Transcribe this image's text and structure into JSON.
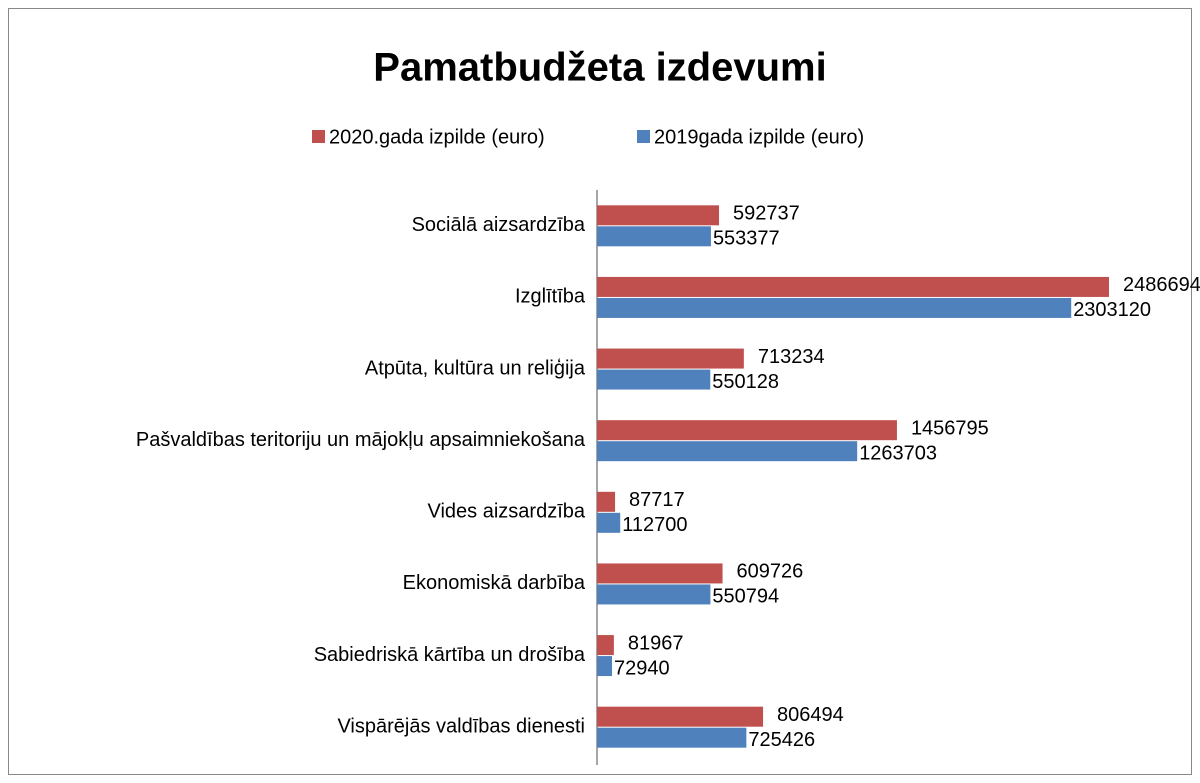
{
  "chart_data": {
    "type": "bar",
    "orientation": "horizontal",
    "title": "Pamatbudžeta izdevumi",
    "categories": [
      "Sociālā aizsardzība",
      "Izglītība",
      "Atpūta, kultūra un reliģija",
      "Pašvaldības teritoriju un mājokļu apsaimniekošana",
      "Vides aizsardzība",
      "Ekonomiskā darbība",
      "Sabiedriskā kārtība un drošība",
      "Vispārējās valdības dienesti"
    ],
    "series": [
      {
        "name": "2020.gada izpilde (euro)",
        "color": "#c0504d",
        "values": [
          592737,
          2486694,
          713234,
          1456795,
          87717,
          609726,
          81967,
          806494
        ]
      },
      {
        "name": "2019gada izpilde (euro)",
        "color": "#4f81bd",
        "values": [
          553377,
          2303120,
          550128,
          1263703,
          112700,
          550794,
          72940,
          725426
        ]
      }
    ],
    "legend": "top",
    "grid": false
  }
}
